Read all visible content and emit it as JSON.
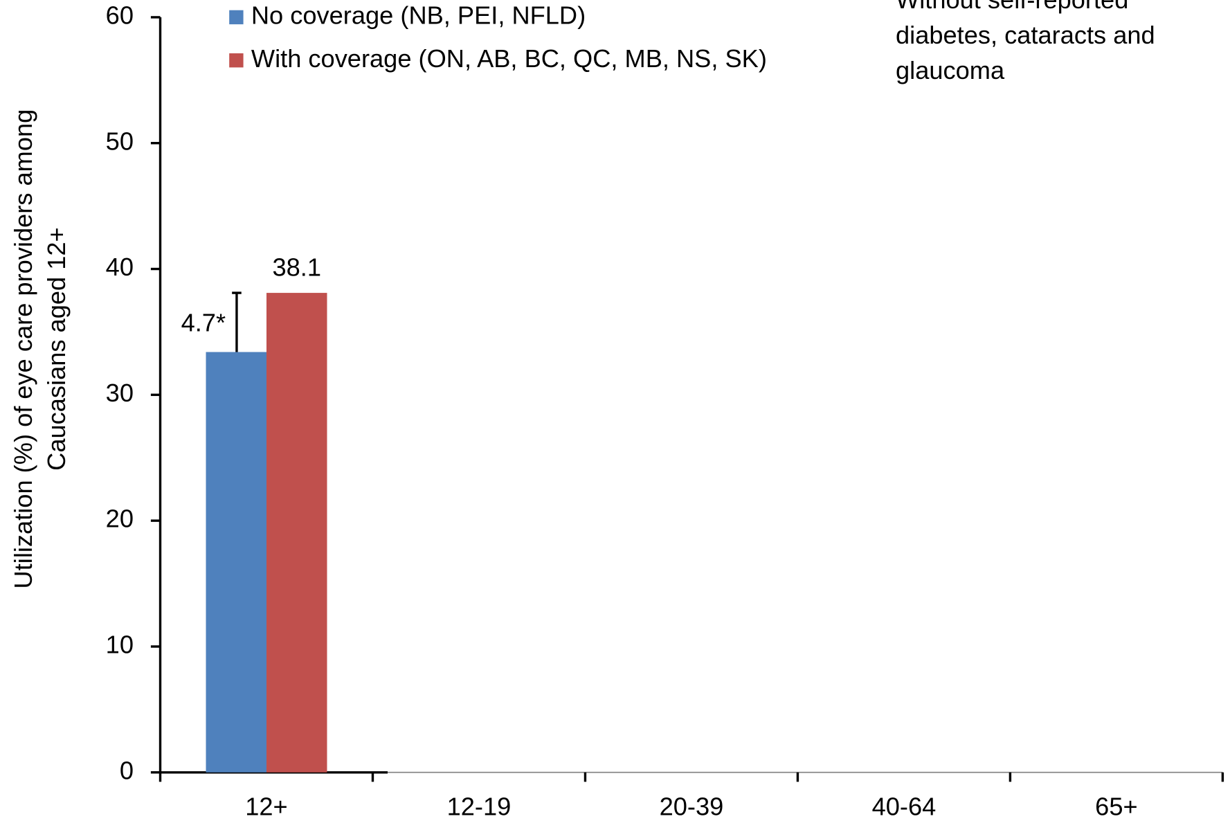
{
  "chart_data": {
    "type": "bar",
    "y_label_lines": [
      "Utilization (%) of eye care providers among",
      "Caucasians aged 12+"
    ],
    "annotation_lines": [
      "Without self-reported",
      "diabetes, cataracts and",
      "glaucoma"
    ],
    "categories": [
      "12+",
      "12-19",
      "20-39",
      "40-64",
      "65+"
    ],
    "series": [
      {
        "name": "No coverage (NB, PEI, NFLD)",
        "color": "#4f81bd",
        "values": [
          33.4,
          null,
          null,
          null,
          null
        ],
        "show_labels": false
      },
      {
        "name": "With coverage (ON, AB, BC, QC, MB, NS, SK)",
        "color": "#c0504d",
        "values": [
          38.1,
          null,
          null,
          null,
          null
        ],
        "show_labels": true
      }
    ],
    "difference": {
      "value": 4.7,
      "label": "4.7*"
    },
    "ylim": [
      0,
      60
    ],
    "yticks": [
      0,
      10,
      20,
      30,
      40,
      50,
      60
    ]
  }
}
